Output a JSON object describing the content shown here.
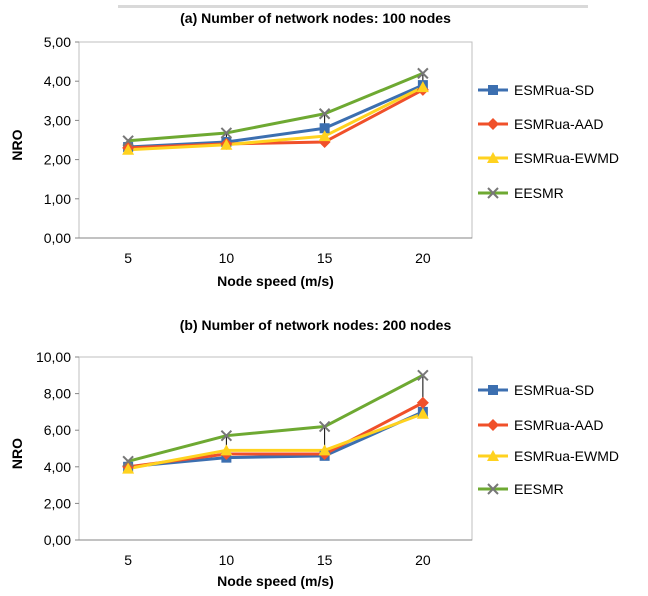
{
  "chart_data": [
    {
      "type": "line",
      "title": "(a) Number of network nodes: 100 nodes",
      "xlabel": "Node speed (m/s)",
      "ylabel": "NRO",
      "categories": [
        "5",
        "10",
        "15",
        "20"
      ],
      "ylim": [
        0,
        5
      ],
      "yticks": [
        "0,00",
        "1,00",
        "2,00",
        "3,00",
        "4,00",
        "5,00"
      ],
      "grid": false,
      "legend": "right",
      "error_bars": true,
      "series": [
        {
          "name": "ESMRua-SD",
          "color": "#3c6fb0",
          "marker": "square",
          "values": [
            2.32,
            2.45,
            2.8,
            3.9
          ]
        },
        {
          "name": "ESMRua-AAD",
          "color": "#f0502a",
          "marker": "diamond",
          "values": [
            2.3,
            2.4,
            2.45,
            3.78
          ]
        },
        {
          "name": "ESMRua-EWMD",
          "color": "#ffd21f",
          "marker": "triangle",
          "values": [
            2.25,
            2.38,
            2.6,
            3.85
          ]
        },
        {
          "name": "EESMR",
          "color": "#6ea932",
          "marker": "x",
          "values": [
            2.48,
            2.68,
            3.17,
            4.2
          ]
        }
      ]
    },
    {
      "type": "line",
      "title": "(b) Number of network nodes: 200 nodes",
      "xlabel": "Node speed (m/s)",
      "ylabel": "NRO",
      "categories": [
        "5",
        "10",
        "15",
        "20"
      ],
      "ylim": [
        0,
        10
      ],
      "yticks": [
        "0,00",
        "2,00",
        "4,00",
        "6,00",
        "8,00",
        "10,00"
      ],
      "grid": false,
      "legend": "right",
      "error_bars": true,
      "series": [
        {
          "name": "ESMRua-SD",
          "color": "#3c6fb0",
          "marker": "square",
          "values": [
            4.0,
            4.5,
            4.6,
            7.0
          ]
        },
        {
          "name": "ESMRua-AAD",
          "color": "#f0502a",
          "marker": "diamond",
          "values": [
            4.0,
            4.7,
            4.7,
            7.5
          ]
        },
        {
          "name": "ESMRua-EWMD",
          "color": "#ffd21f",
          "marker": "triangle",
          "values": [
            3.9,
            4.9,
            4.9,
            6.9
          ]
        },
        {
          "name": "EESMR",
          "color": "#6ea932",
          "marker": "x",
          "values": [
            4.3,
            5.7,
            6.2,
            9.0
          ]
        }
      ]
    }
  ]
}
